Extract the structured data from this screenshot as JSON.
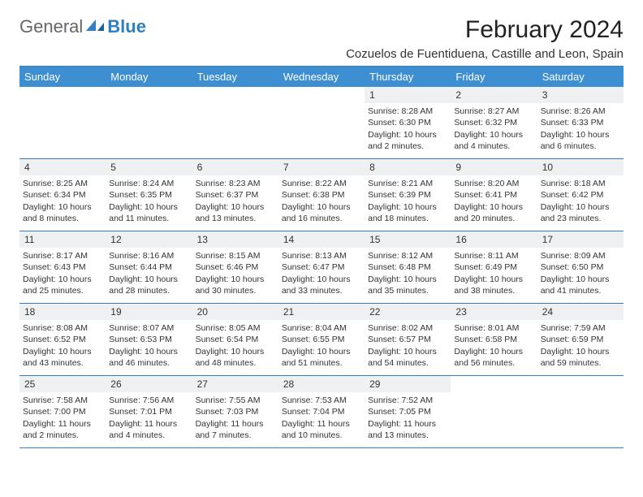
{
  "logo": {
    "general": "General",
    "blue": "Blue"
  },
  "title": "February 2024",
  "location": "Cozuelos de Fuentiduena, Castille and Leon, Spain",
  "dayNames": [
    "Sunday",
    "Monday",
    "Tuesday",
    "Wednesday",
    "Thursday",
    "Friday",
    "Saturday"
  ],
  "colors": {
    "header_bg": "#3d8fd1",
    "border": "#2f7fc2",
    "date_bar": "#eef0f1",
    "text": "#333333"
  },
  "weeks": [
    [
      null,
      null,
      null,
      null,
      {
        "d": "1",
        "sr": "Sunrise: 8:28 AM",
        "ss": "Sunset: 6:30 PM",
        "dl1": "Daylight: 10 hours",
        "dl2": "and 2 minutes."
      },
      {
        "d": "2",
        "sr": "Sunrise: 8:27 AM",
        "ss": "Sunset: 6:32 PM",
        "dl1": "Daylight: 10 hours",
        "dl2": "and 4 minutes."
      },
      {
        "d": "3",
        "sr": "Sunrise: 8:26 AM",
        "ss": "Sunset: 6:33 PM",
        "dl1": "Daylight: 10 hours",
        "dl2": "and 6 minutes."
      }
    ],
    [
      {
        "d": "4",
        "sr": "Sunrise: 8:25 AM",
        "ss": "Sunset: 6:34 PM",
        "dl1": "Daylight: 10 hours",
        "dl2": "and 8 minutes."
      },
      {
        "d": "5",
        "sr": "Sunrise: 8:24 AM",
        "ss": "Sunset: 6:35 PM",
        "dl1": "Daylight: 10 hours",
        "dl2": "and 11 minutes."
      },
      {
        "d": "6",
        "sr": "Sunrise: 8:23 AM",
        "ss": "Sunset: 6:37 PM",
        "dl1": "Daylight: 10 hours",
        "dl2": "and 13 minutes."
      },
      {
        "d": "7",
        "sr": "Sunrise: 8:22 AM",
        "ss": "Sunset: 6:38 PM",
        "dl1": "Daylight: 10 hours",
        "dl2": "and 16 minutes."
      },
      {
        "d": "8",
        "sr": "Sunrise: 8:21 AM",
        "ss": "Sunset: 6:39 PM",
        "dl1": "Daylight: 10 hours",
        "dl2": "and 18 minutes."
      },
      {
        "d": "9",
        "sr": "Sunrise: 8:20 AM",
        "ss": "Sunset: 6:41 PM",
        "dl1": "Daylight: 10 hours",
        "dl2": "and 20 minutes."
      },
      {
        "d": "10",
        "sr": "Sunrise: 8:18 AM",
        "ss": "Sunset: 6:42 PM",
        "dl1": "Daylight: 10 hours",
        "dl2": "and 23 minutes."
      }
    ],
    [
      {
        "d": "11",
        "sr": "Sunrise: 8:17 AM",
        "ss": "Sunset: 6:43 PM",
        "dl1": "Daylight: 10 hours",
        "dl2": "and 25 minutes."
      },
      {
        "d": "12",
        "sr": "Sunrise: 8:16 AM",
        "ss": "Sunset: 6:44 PM",
        "dl1": "Daylight: 10 hours",
        "dl2": "and 28 minutes."
      },
      {
        "d": "13",
        "sr": "Sunrise: 8:15 AM",
        "ss": "Sunset: 6:46 PM",
        "dl1": "Daylight: 10 hours",
        "dl2": "and 30 minutes."
      },
      {
        "d": "14",
        "sr": "Sunrise: 8:13 AM",
        "ss": "Sunset: 6:47 PM",
        "dl1": "Daylight: 10 hours",
        "dl2": "and 33 minutes."
      },
      {
        "d": "15",
        "sr": "Sunrise: 8:12 AM",
        "ss": "Sunset: 6:48 PM",
        "dl1": "Daylight: 10 hours",
        "dl2": "and 35 minutes."
      },
      {
        "d": "16",
        "sr": "Sunrise: 8:11 AM",
        "ss": "Sunset: 6:49 PM",
        "dl1": "Daylight: 10 hours",
        "dl2": "and 38 minutes."
      },
      {
        "d": "17",
        "sr": "Sunrise: 8:09 AM",
        "ss": "Sunset: 6:50 PM",
        "dl1": "Daylight: 10 hours",
        "dl2": "and 41 minutes."
      }
    ],
    [
      {
        "d": "18",
        "sr": "Sunrise: 8:08 AM",
        "ss": "Sunset: 6:52 PM",
        "dl1": "Daylight: 10 hours",
        "dl2": "and 43 minutes."
      },
      {
        "d": "19",
        "sr": "Sunrise: 8:07 AM",
        "ss": "Sunset: 6:53 PM",
        "dl1": "Daylight: 10 hours",
        "dl2": "and 46 minutes."
      },
      {
        "d": "20",
        "sr": "Sunrise: 8:05 AM",
        "ss": "Sunset: 6:54 PM",
        "dl1": "Daylight: 10 hours",
        "dl2": "and 48 minutes."
      },
      {
        "d": "21",
        "sr": "Sunrise: 8:04 AM",
        "ss": "Sunset: 6:55 PM",
        "dl1": "Daylight: 10 hours",
        "dl2": "and 51 minutes."
      },
      {
        "d": "22",
        "sr": "Sunrise: 8:02 AM",
        "ss": "Sunset: 6:57 PM",
        "dl1": "Daylight: 10 hours",
        "dl2": "and 54 minutes."
      },
      {
        "d": "23",
        "sr": "Sunrise: 8:01 AM",
        "ss": "Sunset: 6:58 PM",
        "dl1": "Daylight: 10 hours",
        "dl2": "and 56 minutes."
      },
      {
        "d": "24",
        "sr": "Sunrise: 7:59 AM",
        "ss": "Sunset: 6:59 PM",
        "dl1": "Daylight: 10 hours",
        "dl2": "and 59 minutes."
      }
    ],
    [
      {
        "d": "25",
        "sr": "Sunrise: 7:58 AM",
        "ss": "Sunset: 7:00 PM",
        "dl1": "Daylight: 11 hours",
        "dl2": "and 2 minutes."
      },
      {
        "d": "26",
        "sr": "Sunrise: 7:56 AM",
        "ss": "Sunset: 7:01 PM",
        "dl1": "Daylight: 11 hours",
        "dl2": "and 4 minutes."
      },
      {
        "d": "27",
        "sr": "Sunrise: 7:55 AM",
        "ss": "Sunset: 7:03 PM",
        "dl1": "Daylight: 11 hours",
        "dl2": "and 7 minutes."
      },
      {
        "d": "28",
        "sr": "Sunrise: 7:53 AM",
        "ss": "Sunset: 7:04 PM",
        "dl1": "Daylight: 11 hours",
        "dl2": "and 10 minutes."
      },
      {
        "d": "29",
        "sr": "Sunrise: 7:52 AM",
        "ss": "Sunset: 7:05 PM",
        "dl1": "Daylight: 11 hours",
        "dl2": "and 13 minutes."
      },
      null,
      null
    ]
  ]
}
